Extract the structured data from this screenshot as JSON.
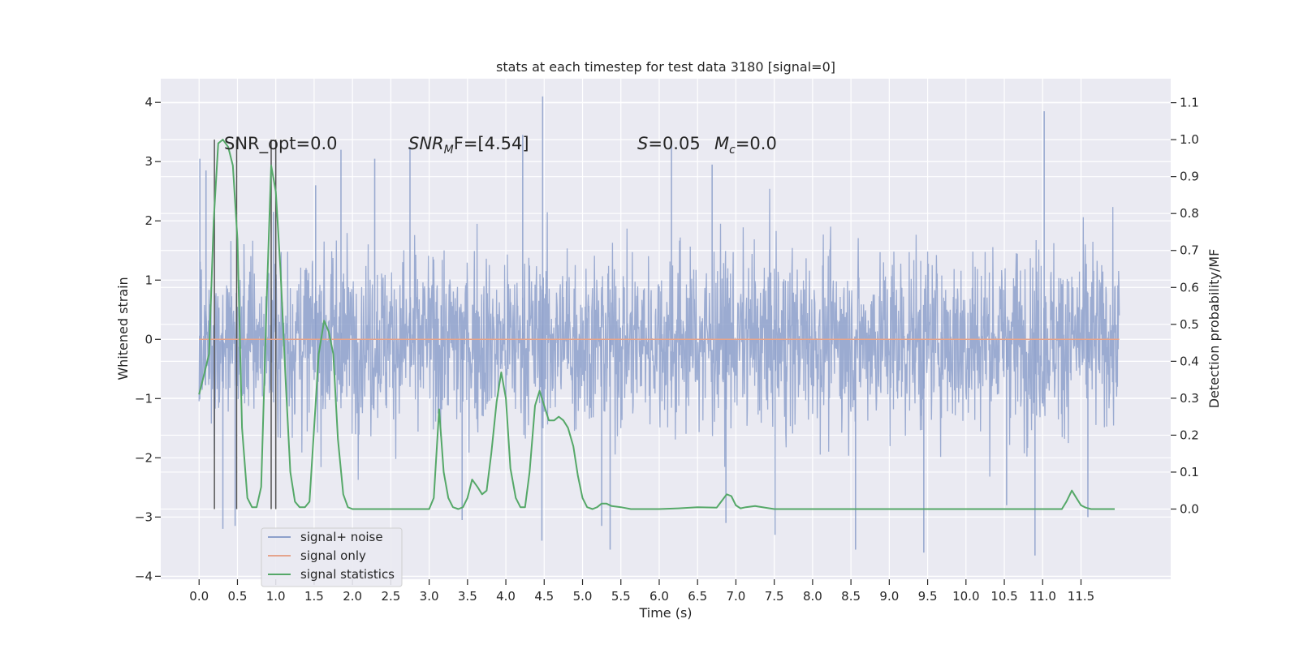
{
  "chart_data": {
    "type": "line",
    "title": "stats at each timestep for test data 3180 [signal=0]",
    "xlabel": "Time (s)",
    "ylabel": "Whitened strain",
    "y2label": "Detection probability/MF",
    "xlim": [
      -0.5,
      12.67
    ],
    "ylim": [
      -4.05,
      4.4
    ],
    "y2lim": [
      -0.19,
      1.165
    ],
    "x_ticks": [
      "0.0",
      "0.5",
      "1.0",
      "1.5",
      "2.0",
      "2.5",
      "3.0",
      "3.5",
      "4.0",
      "4.5",
      "5.0",
      "5.5",
      "6.0",
      "6.5",
      "7.0",
      "7.5",
      "8.0",
      "8.5",
      "9.0",
      "9.5",
      "10.0",
      "10.5",
      "11.0",
      "11.5"
    ],
    "y_ticks": [
      "−4",
      "−3",
      "−2",
      "−1",
      "0",
      "1",
      "2",
      "3",
      "4"
    ],
    "y2_ticks": [
      "0.0",
      "0.1",
      "0.2",
      "0.3",
      "0.4",
      "0.5",
      "0.6",
      "0.7",
      "0.8",
      "0.9",
      "1.0",
      "1.1"
    ],
    "grid": true,
    "legend_position": "lower-left",
    "legend_entries": [
      {
        "label": "signal+ noise",
        "color": "#8da0cb"
      },
      {
        "label": "signal only",
        "color": "#e5a48c"
      },
      {
        "label": "signal statistics",
        "color": "#55a868"
      }
    ],
    "annotations": {
      "snr_opt": "SNR_opt=0.0",
      "snr_mf_base": "SNR",
      "snr_mf_sub": "M",
      "snr_mf_rest": "F=[4.54]",
      "s_label": "S",
      "s_value": "=0.05",
      "mc_label": "M",
      "mc_sub": "c",
      "mc_value": "=0.0"
    },
    "series": [
      {
        "name": "signal+ noise",
        "color": "#8da0cb",
        "x_range": [
          0.0,
          12.0
        ],
        "envelope_peaks": [
          {
            "x": 0.01,
            "y": 3.05
          },
          {
            "x": 0.09,
            "y": 2.85
          },
          {
            "x": 0.47,
            "y": -3.15
          },
          {
            "x": 0.31,
            "y": -3.2
          },
          {
            "x": 0.97,
            "y": 2.15
          },
          {
            "x": 1.52,
            "y": 2.6
          },
          {
            "x": 1.85,
            "y": 3.2
          },
          {
            "x": 2.29,
            "y": 3.05
          },
          {
            "x": 2.75,
            "y": 3.25
          },
          {
            "x": 3.43,
            "y": -3.05
          },
          {
            "x": 4.22,
            "y": 3.45
          },
          {
            "x": 4.48,
            "y": 4.1
          },
          {
            "x": 4.47,
            "y": -3.4
          },
          {
            "x": 5.25,
            "y": -3.15
          },
          {
            "x": 5.36,
            "y": -3.55
          },
          {
            "x": 6.16,
            "y": 3.35
          },
          {
            "x": 6.69,
            "y": 2.95
          },
          {
            "x": 6.87,
            "y": -3.1
          },
          {
            "x": 7.51,
            "y": -3.3
          },
          {
            "x": 8.56,
            "y": -3.55
          },
          {
            "x": 9.45,
            "y": -3.6
          },
          {
            "x": 10.53,
            "y": -2.8
          },
          {
            "x": 10.9,
            "y": -3.65
          },
          {
            "x": 11.02,
            "y": 3.85
          },
          {
            "x": 11.59,
            "y": -3.0
          }
        ]
      },
      {
        "name": "signal only",
        "color": "#e5a48c",
        "x": [
          0.0,
          12.0
        ],
        "y": [
          0.0,
          0.0
        ]
      },
      {
        "name": "signal statistics",
        "color": "#55a868",
        "axis": "right",
        "x": [
          0.0,
          0.06,
          0.13,
          0.19,
          0.25,
          0.31,
          0.38,
          0.44,
          0.5,
          0.56,
          0.63,
          0.69,
          0.75,
          0.81,
          0.88,
          0.94,
          1.0,
          1.06,
          1.13,
          1.19,
          1.25,
          1.31,
          1.38,
          1.44,
          1.5,
          1.56,
          1.63,
          1.69,
          1.75,
          1.81,
          1.88,
          1.94,
          2.0,
          2.25,
          2.5,
          2.75,
          3.0,
          3.06,
          3.13,
          3.19,
          3.25,
          3.31,
          3.38,
          3.44,
          3.5,
          3.56,
          3.63,
          3.69,
          3.75,
          3.81,
          3.88,
          3.94,
          4.0,
          4.06,
          4.13,
          4.19,
          4.25,
          4.31,
          4.38,
          4.44,
          4.5,
          4.56,
          4.63,
          4.69,
          4.75,
          4.81,
          4.88,
          4.94,
          5.0,
          5.06,
          5.13,
          5.19,
          5.25,
          5.31,
          5.38,
          5.5,
          5.63,
          5.75,
          6.0,
          6.25,
          6.5,
          6.75,
          6.88,
          6.94,
          7.0,
          7.06,
          7.13,
          7.25,
          7.38,
          7.5,
          8.0,
          9.0,
          10.0,
          10.5,
          11.0,
          11.25,
          11.31,
          11.38,
          11.44,
          11.5,
          11.56,
          11.63,
          11.75,
          11.94
        ],
        "y": [
          0.31,
          0.36,
          0.42,
          0.78,
          0.99,
          1.0,
          0.98,
          0.93,
          0.73,
          0.22,
          0.03,
          0.005,
          0.005,
          0.06,
          0.56,
          0.93,
          0.86,
          0.65,
          0.34,
          0.1,
          0.02,
          0.005,
          0.005,
          0.02,
          0.22,
          0.42,
          0.51,
          0.48,
          0.42,
          0.19,
          0.04,
          0.005,
          0.0,
          0.0,
          0.0,
          0.0,
          0.0,
          0.03,
          0.27,
          0.1,
          0.03,
          0.005,
          0.0,
          0.005,
          0.03,
          0.08,
          0.06,
          0.04,
          0.05,
          0.15,
          0.29,
          0.37,
          0.3,
          0.11,
          0.03,
          0.005,
          0.005,
          0.1,
          0.28,
          0.32,
          0.28,
          0.24,
          0.24,
          0.25,
          0.24,
          0.22,
          0.17,
          0.09,
          0.03,
          0.005,
          0.0,
          0.005,
          0.015,
          0.015,
          0.008,
          0.005,
          0.0,
          0.0,
          0.0,
          0.002,
          0.005,
          0.004,
          0.04,
          0.035,
          0.01,
          0.002,
          0.005,
          0.008,
          0.004,
          0.0,
          0.0,
          0.0,
          0.0,
          0.0,
          0.0,
          0.0,
          0.02,
          0.05,
          0.03,
          0.01,
          0.004,
          0.0,
          0.0,
          0.0
        ]
      }
    ],
    "vertical_markers_x": [
      0.2,
      0.49,
      0.94,
      1.0
    ]
  }
}
